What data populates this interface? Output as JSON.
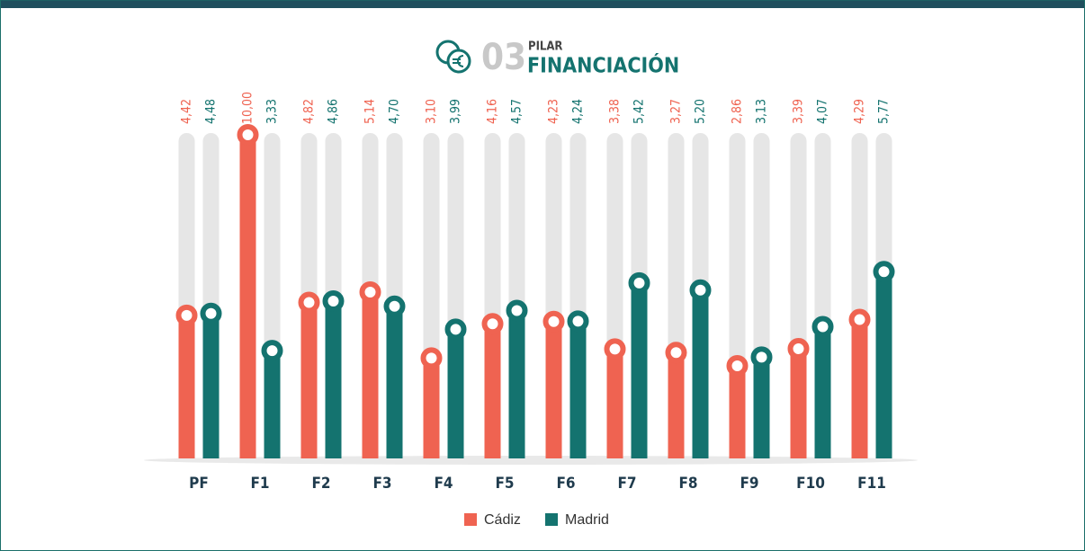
{
  "chart_data": {
    "type": "bar",
    "number": "03",
    "subtitle": "PILAR",
    "title": "FINANCIACIÓN",
    "categories": [
      "PF",
      "F1",
      "F2",
      "F3",
      "F4",
      "F5",
      "F6",
      "F7",
      "F8",
      "F9",
      "F10",
      "F11"
    ],
    "series": [
      {
        "name": "Cádiz",
        "color": "#ef6351",
        "values": [
          4.42,
          10.0,
          4.82,
          5.14,
          3.1,
          4.16,
          4.23,
          3.38,
          3.27,
          2.86,
          3.39,
          4.29
        ],
        "value_labels": [
          "4,42",
          "10,00",
          "4,82",
          "5,14",
          "3,10",
          "4,16",
          "4,23",
          "3,38",
          "3,27",
          "2,86",
          "3,39",
          "4,29"
        ]
      },
      {
        "name": "Madrid",
        "color": "#14736f",
        "values": [
          4.48,
          3.33,
          4.86,
          4.7,
          3.99,
          4.57,
          4.24,
          5.42,
          5.2,
          3.13,
          4.07,
          5.77
        ],
        "value_labels": [
          "4,48",
          "3,33",
          "4,86",
          "4,70",
          "3,99",
          "4,57",
          "4,24",
          "5,42",
          "5,20",
          "3,13",
          "4,07",
          "5,77"
        ]
      }
    ],
    "ylim": [
      0,
      10
    ]
  }
}
